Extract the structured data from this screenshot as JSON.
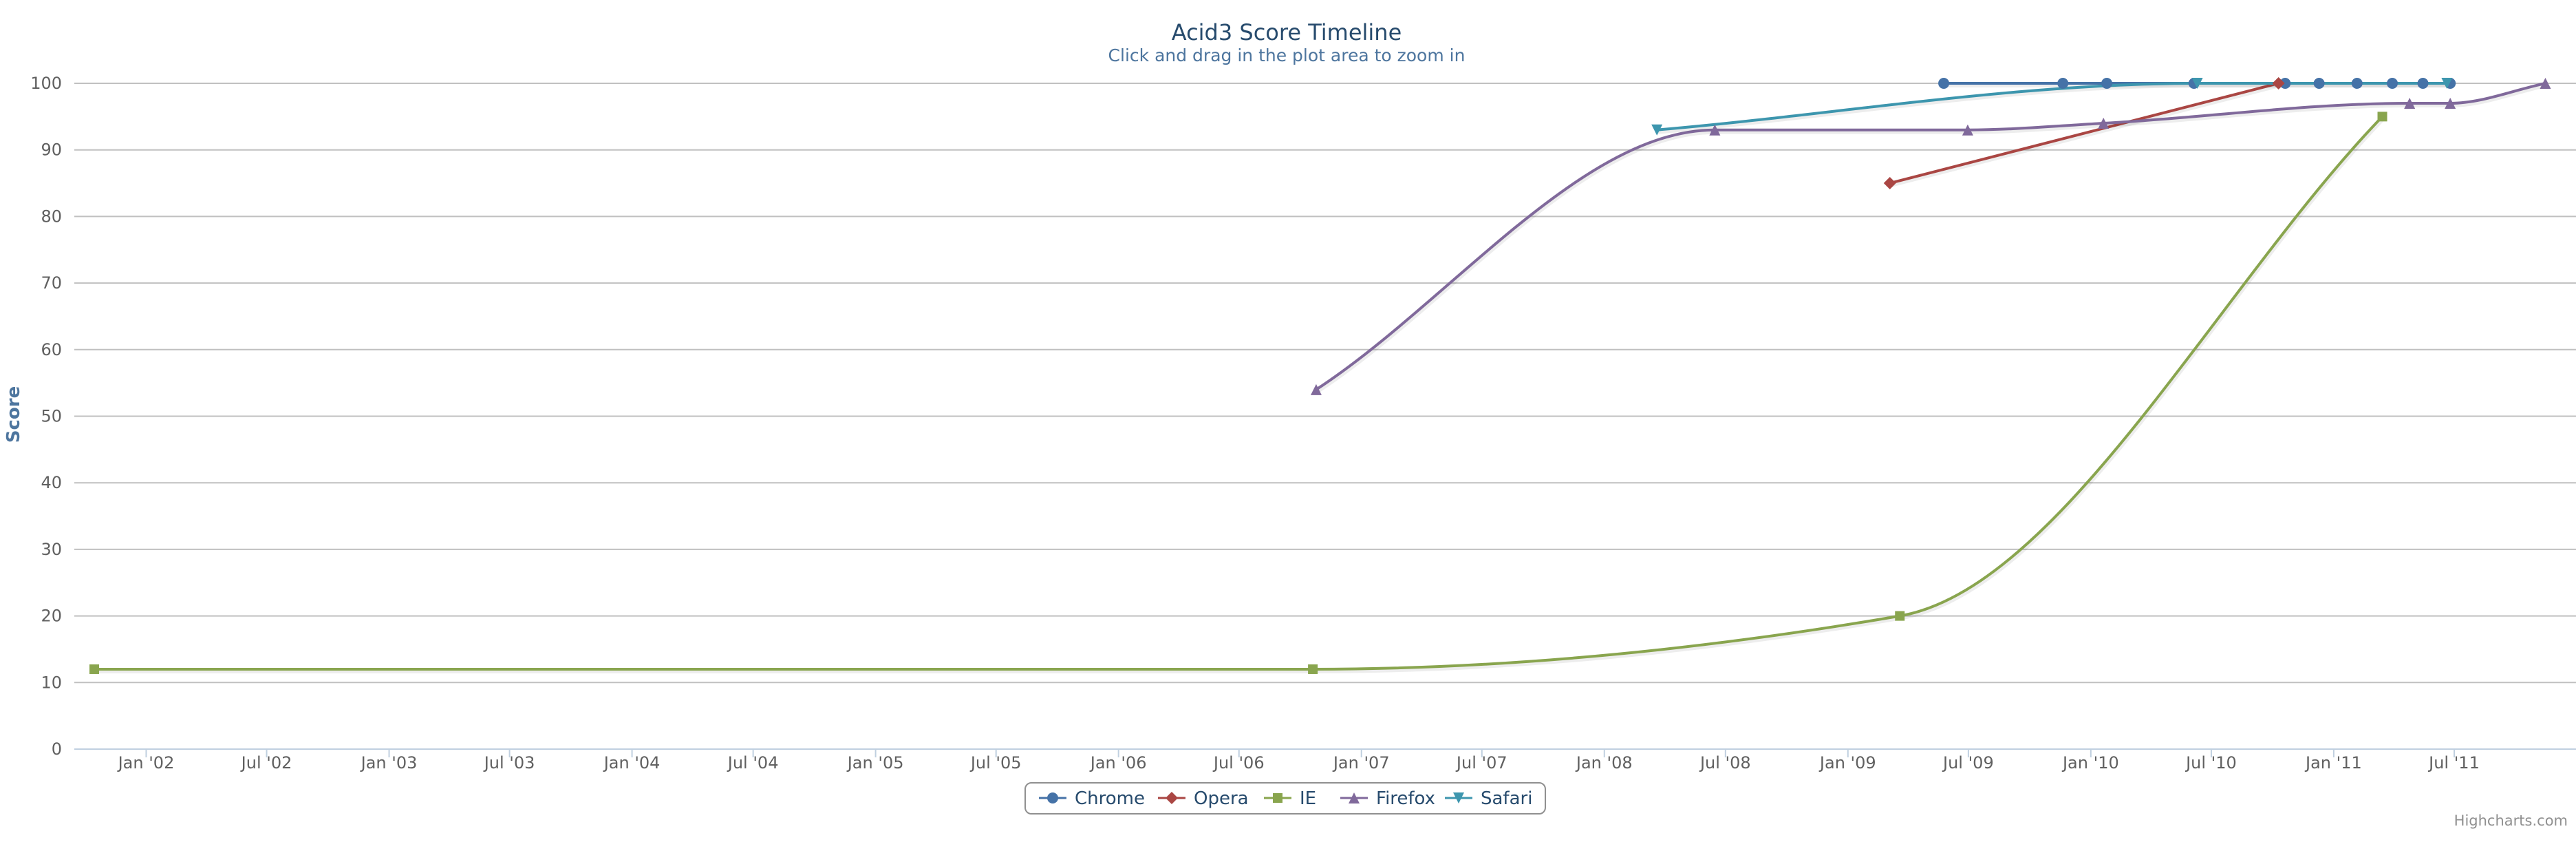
{
  "chart_data": {
    "type": "line",
    "title": "Acid3 Score Timeline",
    "subtitle": "Click and drag in the plot area to zoom in",
    "ylabel": "Score",
    "xlabel": "",
    "ylim": [
      0,
      100
    ],
    "yticks": [
      0,
      10,
      20,
      30,
      40,
      50,
      60,
      70,
      80,
      90,
      100
    ],
    "xlim": [
      "2001-09-15",
      "2011-12-31"
    ],
    "xticks": [
      {
        "date": "2002-01-01",
        "label": "Jan '02"
      },
      {
        "date": "2002-07-01",
        "label": "Jul '02"
      },
      {
        "date": "2003-01-01",
        "label": "Jan '03"
      },
      {
        "date": "2003-07-01",
        "label": "Jul '03"
      },
      {
        "date": "2004-01-01",
        "label": "Jan '04"
      },
      {
        "date": "2004-07-01",
        "label": "Jul '04"
      },
      {
        "date": "2005-01-01",
        "label": "Jan '05"
      },
      {
        "date": "2005-07-01",
        "label": "Jul '05"
      },
      {
        "date": "2006-01-01",
        "label": "Jan '06"
      },
      {
        "date": "2006-07-01",
        "label": "Jul '06"
      },
      {
        "date": "2007-01-01",
        "label": "Jan '07"
      },
      {
        "date": "2007-07-01",
        "label": "Jul '07"
      },
      {
        "date": "2008-01-01",
        "label": "Jan '08"
      },
      {
        "date": "2008-07-01",
        "label": "Jul '08"
      },
      {
        "date": "2009-01-01",
        "label": "Jan '09"
      },
      {
        "date": "2009-07-01",
        "label": "Jul '09"
      },
      {
        "date": "2010-01-01",
        "label": "Jan '10"
      },
      {
        "date": "2010-07-01",
        "label": "Jul '10"
      },
      {
        "date": "2011-01-01",
        "label": "Jan '11"
      },
      {
        "date": "2011-07-01",
        "label": "Jul '11"
      }
    ],
    "grid": true,
    "legend_position": "bottom-center",
    "series": [
      {
        "name": "Chrome",
        "color": "#4572a7",
        "marker": "circle",
        "points": [
          {
            "x": "2009-05-25",
            "y": 100
          },
          {
            "x": "2009-11-20",
            "y": 100
          },
          {
            "x": "2010-01-25",
            "y": 100
          },
          {
            "x": "2010-06-05",
            "y": 100
          },
          {
            "x": "2010-10-20",
            "y": 100
          },
          {
            "x": "2010-12-10",
            "y": 100
          },
          {
            "x": "2011-02-05",
            "y": 100
          },
          {
            "x": "2011-03-30",
            "y": 100
          },
          {
            "x": "2011-05-15",
            "y": 100
          },
          {
            "x": "2011-06-25",
            "y": 100
          }
        ]
      },
      {
        "name": "Opera",
        "color": "#aa4643",
        "marker": "diamond",
        "points": [
          {
            "x": "2009-03-05",
            "y": 85
          },
          {
            "x": "2010-10-10",
            "y": 100
          }
        ]
      },
      {
        "name": "IE",
        "color": "#89a54e",
        "marker": "square",
        "points": [
          {
            "x": "2001-10-15",
            "y": 12
          },
          {
            "x": "2006-10-20",
            "y": 12
          },
          {
            "x": "2009-03-20",
            "y": 20
          },
          {
            "x": "2011-03-15",
            "y": 95
          }
        ]
      },
      {
        "name": "Firefox",
        "color": "#80699b",
        "marker": "triangle",
        "points": [
          {
            "x": "2006-10-25",
            "y": 54
          },
          {
            "x": "2008-06-15",
            "y": 93
          },
          {
            "x": "2009-06-30",
            "y": 93
          },
          {
            "x": "2010-01-20",
            "y": 94
          },
          {
            "x": "2011-04-25",
            "y": 97
          },
          {
            "x": "2011-06-25",
            "y": 97
          },
          {
            "x": "2011-11-15",
            "y": 100
          }
        ]
      },
      {
        "name": "Safari",
        "color": "#3d96ae",
        "marker": "triangle-down",
        "points": [
          {
            "x": "2008-03-20",
            "y": 93
          },
          {
            "x": "2010-06-10",
            "y": 100
          },
          {
            "x": "2011-06-20",
            "y": 100
          }
        ]
      }
    ]
  },
  "credit": "Highcharts.com"
}
